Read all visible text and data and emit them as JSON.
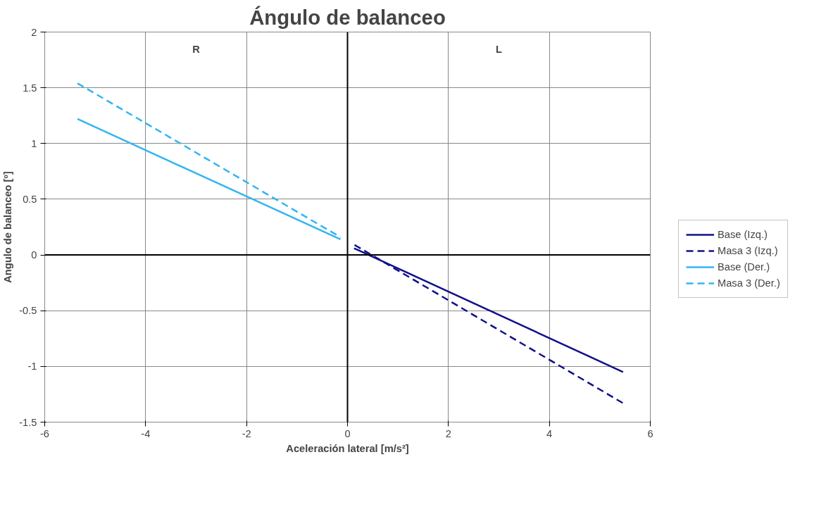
{
  "chart_data": {
    "type": "line",
    "title": "Ángulo de balanceo",
    "xlabel": "Aceleración lateral [m/s²]",
    "ylabel": "Angulo de balanceo [º]",
    "xlim": [
      -6,
      6
    ],
    "xticks": [
      -6,
      -4,
      -2,
      0,
      2,
      4,
      6
    ],
    "ylim": [
      -1.5,
      2
    ],
    "yticks": [
      -1.5,
      -1,
      -0.5,
      0,
      0.5,
      1,
      1.5,
      2
    ],
    "grid": true,
    "legend": "right",
    "marker": "none",
    "annotations": [
      "R",
      "L"
    ],
    "series": [
      {
        "name": "Base (Izq.)",
        "color": "#10108a",
        "line_style": "solid",
        "x": [
          0.13,
          5.46
        ],
        "values": [
          0.06,
          -1.05
        ]
      },
      {
        "name": "Masa 3 (Izq.)",
        "color": "#10108a",
        "line_style": "dashed",
        "x": [
          0.14,
          5.46
        ],
        "values": [
          0.09,
          -1.33
        ]
      },
      {
        "name": "Base (Der.)",
        "color": "#33b5f0",
        "line_style": "solid",
        "x": [
          -5.35,
          -0.14
        ],
        "values": [
          1.22,
          0.14
        ]
      },
      {
        "name": "Masa 3 (Der.)",
        "color": "#33b5f0",
        "line_style": "dashed",
        "x": [
          -5.35,
          -0.14
        ],
        "values": [
          1.54,
          0.16
        ]
      }
    ]
  }
}
